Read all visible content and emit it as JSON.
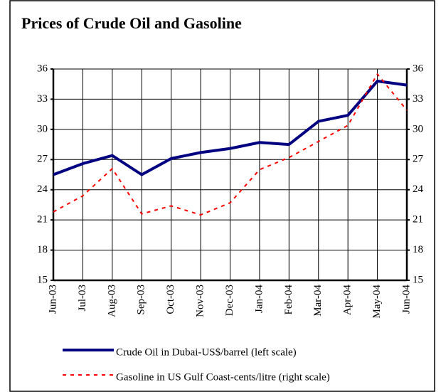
{
  "chart_data": {
    "type": "line",
    "title": "Prices of Crude Oil and Gasoline",
    "categories": [
      "Jun-03",
      "Jul-03",
      "Aug-03",
      "Sep-03",
      "Oct-03",
      "Nov-03",
      "Dec-03",
      "Jan-04",
      "Feb-04",
      "Mar-04",
      "Apr-04",
      "May-04",
      "Jun-04"
    ],
    "series": [
      {
        "name": "Crude Oil in Dubai-US$/barrel (left scale)",
        "color": "#000080",
        "style": "solid",
        "values": [
          25.5,
          26.6,
          27.4,
          25.5,
          27.1,
          27.7,
          28.1,
          28.7,
          28.5,
          30.8,
          31.4,
          34.8,
          34.4
        ]
      },
      {
        "name": "Gasoline in US Gulf Coast-cents/litre (right scale)",
        "color": "#ff0000",
        "style": "dashed",
        "axis": "y2",
        "values": [
          21.8,
          23.4,
          26.1,
          21.6,
          22.4,
          21.5,
          22.7,
          26.0,
          27.2,
          28.8,
          30.4,
          35.5,
          31.9
        ]
      }
    ],
    "ylim": [
      15,
      36
    ],
    "yticks": [
      15,
      18,
      21,
      24,
      27,
      30,
      33,
      36
    ],
    "y2lim": [
      15,
      36
    ],
    "y2ticks": [
      15,
      18,
      21,
      24,
      27,
      30,
      33,
      36
    ],
    "grid": true
  }
}
